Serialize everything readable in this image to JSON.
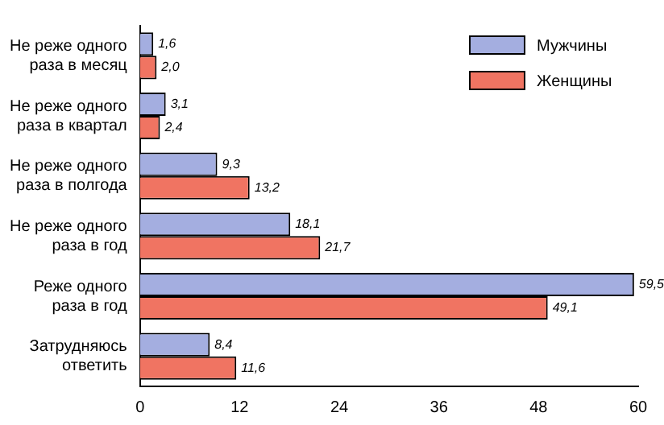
{
  "chart_data": {
    "type": "bar",
    "orientation": "horizontal",
    "categories": [
      "Не реже одного раза в месяц",
      "Не реже одного раза в квартал",
      "Не реже одного раза в полгода",
      "Не реже одного раза в год",
      "Реже одного раза в год",
      "Затрудняюсь ответить"
    ],
    "series": [
      {
        "name": "Мужчины",
        "color": "#a4aee0",
        "values": [
          1.6,
          3.1,
          9.3,
          18.1,
          59.5,
          8.4
        ]
      },
      {
        "name": "Женщины",
        "color": "#f07462",
        "values": [
          2.0,
          2.4,
          13.2,
          21.7,
          49.1,
          11.6
        ]
      }
    ],
    "value_labels": [
      [
        "1,6",
        "3,1",
        "9,3",
        "18,1",
        "59,5",
        "8,4"
      ],
      [
        "2,0",
        "2,4",
        "13,2",
        "21,7",
        "49,1",
        "11,6"
      ]
    ],
    "xlim": [
      0,
      60
    ],
    "xticks": [
      0,
      12,
      24,
      36,
      48,
      60
    ],
    "grid": false,
    "legend": "top right"
  }
}
